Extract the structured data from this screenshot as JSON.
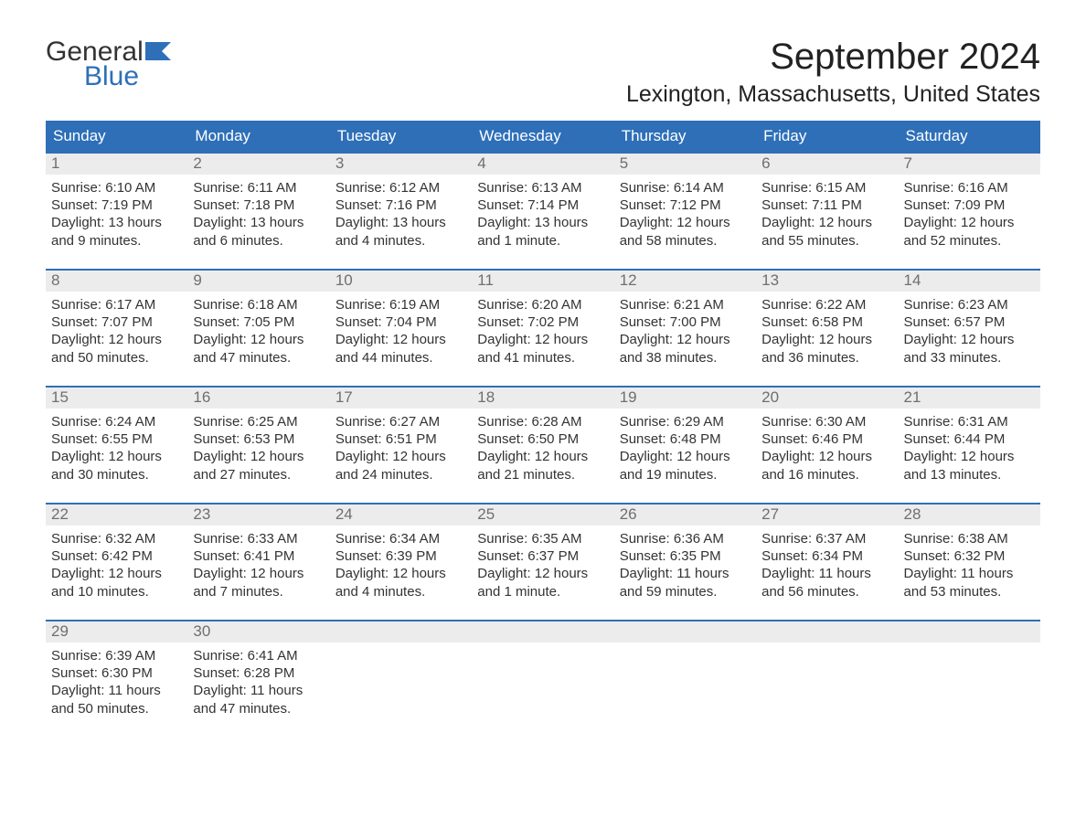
{
  "brand": {
    "word1": "General",
    "word2": "Blue",
    "flag_color": "#2e6fb8",
    "text_color": "#333333"
  },
  "header": {
    "month_title": "September 2024",
    "location": "Lexington, Massachusetts, United States"
  },
  "calendar": {
    "type": "table",
    "header_bg": "#2e6fb8",
    "header_text_color": "#ffffff",
    "week_divider_color": "#2e6fb8",
    "daynum_bg": "#ececec",
    "daynum_text_color": "#6f6f6f",
    "body_text_color": "#333333",
    "background_color": "#ffffff",
    "header_fontsize": 17,
    "body_fontsize": 15,
    "columns": [
      "Sunday",
      "Monday",
      "Tuesday",
      "Wednesday",
      "Thursday",
      "Friday",
      "Saturday"
    ],
    "weeks": [
      [
        {
          "num": "1",
          "sunrise": "Sunrise: 6:10 AM",
          "sunset": "Sunset: 7:19 PM",
          "daylight1": "Daylight: 13 hours",
          "daylight2": "and 9 minutes."
        },
        {
          "num": "2",
          "sunrise": "Sunrise: 6:11 AM",
          "sunset": "Sunset: 7:18 PM",
          "daylight1": "Daylight: 13 hours",
          "daylight2": "and 6 minutes."
        },
        {
          "num": "3",
          "sunrise": "Sunrise: 6:12 AM",
          "sunset": "Sunset: 7:16 PM",
          "daylight1": "Daylight: 13 hours",
          "daylight2": "and 4 minutes."
        },
        {
          "num": "4",
          "sunrise": "Sunrise: 6:13 AM",
          "sunset": "Sunset: 7:14 PM",
          "daylight1": "Daylight: 13 hours",
          "daylight2": "and 1 minute."
        },
        {
          "num": "5",
          "sunrise": "Sunrise: 6:14 AM",
          "sunset": "Sunset: 7:12 PM",
          "daylight1": "Daylight: 12 hours",
          "daylight2": "and 58 minutes."
        },
        {
          "num": "6",
          "sunrise": "Sunrise: 6:15 AM",
          "sunset": "Sunset: 7:11 PM",
          "daylight1": "Daylight: 12 hours",
          "daylight2": "and 55 minutes."
        },
        {
          "num": "7",
          "sunrise": "Sunrise: 6:16 AM",
          "sunset": "Sunset: 7:09 PM",
          "daylight1": "Daylight: 12 hours",
          "daylight2": "and 52 minutes."
        }
      ],
      [
        {
          "num": "8",
          "sunrise": "Sunrise: 6:17 AM",
          "sunset": "Sunset: 7:07 PM",
          "daylight1": "Daylight: 12 hours",
          "daylight2": "and 50 minutes."
        },
        {
          "num": "9",
          "sunrise": "Sunrise: 6:18 AM",
          "sunset": "Sunset: 7:05 PM",
          "daylight1": "Daylight: 12 hours",
          "daylight2": "and 47 minutes."
        },
        {
          "num": "10",
          "sunrise": "Sunrise: 6:19 AM",
          "sunset": "Sunset: 7:04 PM",
          "daylight1": "Daylight: 12 hours",
          "daylight2": "and 44 minutes."
        },
        {
          "num": "11",
          "sunrise": "Sunrise: 6:20 AM",
          "sunset": "Sunset: 7:02 PM",
          "daylight1": "Daylight: 12 hours",
          "daylight2": "and 41 minutes."
        },
        {
          "num": "12",
          "sunrise": "Sunrise: 6:21 AM",
          "sunset": "Sunset: 7:00 PM",
          "daylight1": "Daylight: 12 hours",
          "daylight2": "and 38 minutes."
        },
        {
          "num": "13",
          "sunrise": "Sunrise: 6:22 AM",
          "sunset": "Sunset: 6:58 PM",
          "daylight1": "Daylight: 12 hours",
          "daylight2": "and 36 minutes."
        },
        {
          "num": "14",
          "sunrise": "Sunrise: 6:23 AM",
          "sunset": "Sunset: 6:57 PM",
          "daylight1": "Daylight: 12 hours",
          "daylight2": "and 33 minutes."
        }
      ],
      [
        {
          "num": "15",
          "sunrise": "Sunrise: 6:24 AM",
          "sunset": "Sunset: 6:55 PM",
          "daylight1": "Daylight: 12 hours",
          "daylight2": "and 30 minutes."
        },
        {
          "num": "16",
          "sunrise": "Sunrise: 6:25 AM",
          "sunset": "Sunset: 6:53 PM",
          "daylight1": "Daylight: 12 hours",
          "daylight2": "and 27 minutes."
        },
        {
          "num": "17",
          "sunrise": "Sunrise: 6:27 AM",
          "sunset": "Sunset: 6:51 PM",
          "daylight1": "Daylight: 12 hours",
          "daylight2": "and 24 minutes."
        },
        {
          "num": "18",
          "sunrise": "Sunrise: 6:28 AM",
          "sunset": "Sunset: 6:50 PM",
          "daylight1": "Daylight: 12 hours",
          "daylight2": "and 21 minutes."
        },
        {
          "num": "19",
          "sunrise": "Sunrise: 6:29 AM",
          "sunset": "Sunset: 6:48 PM",
          "daylight1": "Daylight: 12 hours",
          "daylight2": "and 19 minutes."
        },
        {
          "num": "20",
          "sunrise": "Sunrise: 6:30 AM",
          "sunset": "Sunset: 6:46 PM",
          "daylight1": "Daylight: 12 hours",
          "daylight2": "and 16 minutes."
        },
        {
          "num": "21",
          "sunrise": "Sunrise: 6:31 AM",
          "sunset": "Sunset: 6:44 PM",
          "daylight1": "Daylight: 12 hours",
          "daylight2": "and 13 minutes."
        }
      ],
      [
        {
          "num": "22",
          "sunrise": "Sunrise: 6:32 AM",
          "sunset": "Sunset: 6:42 PM",
          "daylight1": "Daylight: 12 hours",
          "daylight2": "and 10 minutes."
        },
        {
          "num": "23",
          "sunrise": "Sunrise: 6:33 AM",
          "sunset": "Sunset: 6:41 PM",
          "daylight1": "Daylight: 12 hours",
          "daylight2": "and 7 minutes."
        },
        {
          "num": "24",
          "sunrise": "Sunrise: 6:34 AM",
          "sunset": "Sunset: 6:39 PM",
          "daylight1": "Daylight: 12 hours",
          "daylight2": "and 4 minutes."
        },
        {
          "num": "25",
          "sunrise": "Sunrise: 6:35 AM",
          "sunset": "Sunset: 6:37 PM",
          "daylight1": "Daylight: 12 hours",
          "daylight2": "and 1 minute."
        },
        {
          "num": "26",
          "sunrise": "Sunrise: 6:36 AM",
          "sunset": "Sunset: 6:35 PM",
          "daylight1": "Daylight: 11 hours",
          "daylight2": "and 59 minutes."
        },
        {
          "num": "27",
          "sunrise": "Sunrise: 6:37 AM",
          "sunset": "Sunset: 6:34 PM",
          "daylight1": "Daylight: 11 hours",
          "daylight2": "and 56 minutes."
        },
        {
          "num": "28",
          "sunrise": "Sunrise: 6:38 AM",
          "sunset": "Sunset: 6:32 PM",
          "daylight1": "Daylight: 11 hours",
          "daylight2": "and 53 minutes."
        }
      ],
      [
        {
          "num": "29",
          "sunrise": "Sunrise: 6:39 AM",
          "sunset": "Sunset: 6:30 PM",
          "daylight1": "Daylight: 11 hours",
          "daylight2": "and 50 minutes."
        },
        {
          "num": "30",
          "sunrise": "Sunrise: 6:41 AM",
          "sunset": "Sunset: 6:28 PM",
          "daylight1": "Daylight: 11 hours",
          "daylight2": "and 47 minutes."
        },
        {
          "empty": true
        },
        {
          "empty": true
        },
        {
          "empty": true
        },
        {
          "empty": true
        },
        {
          "empty": true
        }
      ]
    ]
  }
}
